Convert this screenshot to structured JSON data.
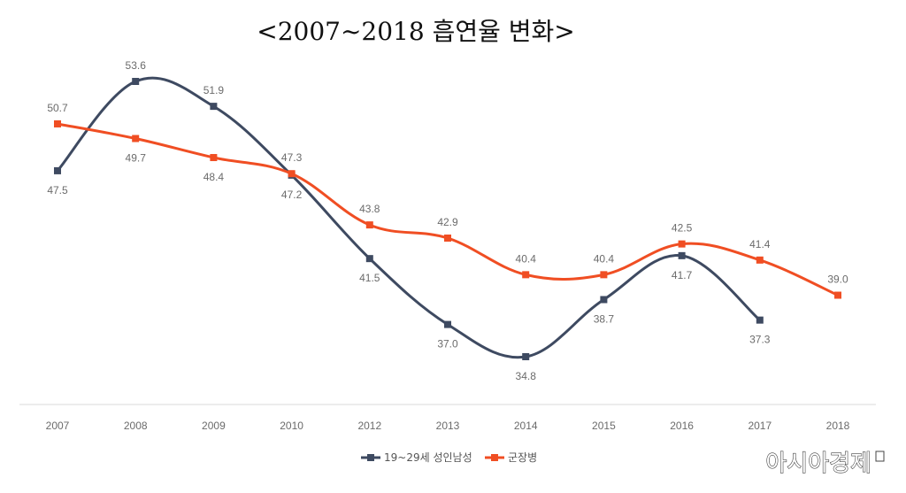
{
  "chart_data": {
    "type": "line",
    "title": "<2007~2018 흡연율 변화>",
    "categories": [
      "2007",
      "2008",
      "2009",
      "2010",
      "2012",
      "2013",
      "2014",
      "2015",
      "2016",
      "2017",
      "2018"
    ],
    "series": [
      {
        "name": "19~29세 성인남성",
        "color": "#3e4a61",
        "values": [
          47.5,
          53.6,
          51.9,
          47.2,
          41.5,
          37.0,
          34.8,
          38.7,
          41.7,
          37.3,
          null
        ],
        "labels": [
          "47.5",
          "53.6",
          "51.9",
          "47.2",
          "41.5",
          "37.0",
          "34.8",
          "38.7",
          "41.7",
          "37.3",
          null
        ]
      },
      {
        "name": "군장병",
        "color": "#f04e23",
        "values": [
          50.7,
          49.7,
          48.4,
          47.3,
          43.8,
          42.9,
          40.4,
          40.4,
          42.5,
          41.4,
          39.0
        ],
        "labels": [
          "50.7",
          "49.7",
          "48.4",
          "47.3",
          "43.8",
          "42.9",
          "40.4",
          "40.4",
          "42.5",
          "41.4",
          "39.0"
        ]
      }
    ],
    "ylim": [
      28,
      56
    ],
    "grid": false,
    "legend_position": "bottom-center"
  },
  "watermark": "아시아경제"
}
